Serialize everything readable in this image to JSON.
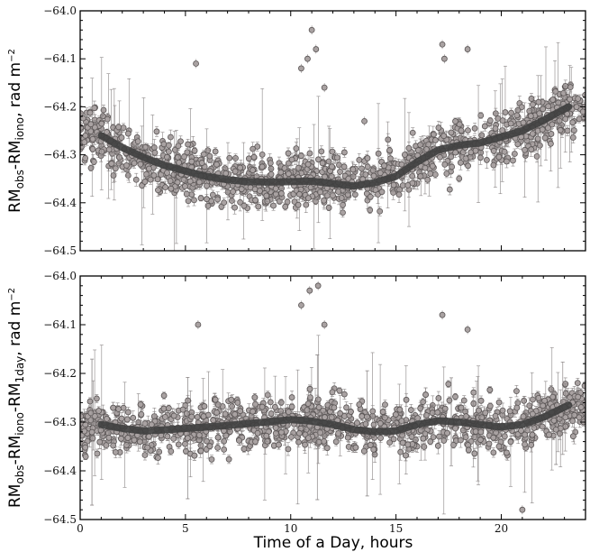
{
  "chart_data": [
    {
      "type": "scatter",
      "title": "",
      "ylabel": {
        "base": "RM",
        "s1": "obs",
        "m1": "-RM",
        "s2": "iono",
        "tail": ", rad m",
        "sup": "−2"
      },
      "xlim": [
        0,
        24
      ],
      "ylim": [
        -64.5,
        -64.0
      ],
      "y_inverted": true,
      "xticks": [
        0,
        5,
        10,
        15,
        20
      ],
      "xtick_labels": [
        "",
        "",
        "",
        "",
        ""
      ],
      "yticks": [
        -64.0,
        -64.1,
        -64.2,
        -64.3,
        -64.4,
        -64.5
      ],
      "ytick_labels": [
        "−64.0",
        "−64.1",
        "−64.2",
        "−64.3",
        "−64.4",
        "−64.5"
      ],
      "trend": {
        "x": [
          1,
          2,
          3,
          4,
          5,
          6,
          7,
          8,
          9,
          10,
          11,
          12,
          13,
          14,
          15,
          16,
          17,
          18,
          19,
          20,
          21,
          22,
          23.2
        ],
        "y": [
          -64.26,
          -64.285,
          -64.305,
          -64.322,
          -64.334,
          -64.345,
          -64.352,
          -64.356,
          -64.357,
          -64.356,
          -64.355,
          -64.36,
          -64.365,
          -64.358,
          -64.345,
          -64.315,
          -64.29,
          -64.28,
          -64.275,
          -64.263,
          -64.25,
          -64.228,
          -64.2
        ]
      },
      "scatter_spread": 0.055,
      "outliers": [
        {
          "x": 10.5,
          "y": -64.12
        },
        {
          "x": 10.8,
          "y": -64.1
        },
        {
          "x": 11.2,
          "y": -64.08
        },
        {
          "x": 11.0,
          "y": -64.04
        },
        {
          "x": 11.6,
          "y": -64.16
        },
        {
          "x": 5.5,
          "y": -64.11
        },
        {
          "x": 17.2,
          "y": -64.07
        },
        {
          "x": 17.3,
          "y": -64.1
        },
        {
          "x": 18.4,
          "y": -64.08
        },
        {
          "x": 13.5,
          "y": -64.23
        }
      ]
    },
    {
      "type": "scatter",
      "title": "",
      "ylabel": {
        "base": "RM",
        "s1": "obs",
        "m1": "-RM",
        "s2": "iono",
        "m2": "-RM",
        "s3": "1day",
        "tail": ", rad m",
        "sup": "−2"
      },
      "xlabel": "Time of a Day, hours",
      "xlim": [
        0,
        24
      ],
      "ylim": [
        -64.5,
        -64.0
      ],
      "y_inverted": true,
      "xticks": [
        0,
        5,
        10,
        15,
        20
      ],
      "xtick_labels": [
        "0",
        "5",
        "10",
        "15",
        "20"
      ],
      "yticks": [
        -64.0,
        -64.1,
        -64.2,
        -64.3,
        -64.4,
        -64.5
      ],
      "ytick_labels": [
        "−64.0",
        "−64.1",
        "−64.2",
        "−64.3",
        "−64.4",
        "−64.5"
      ],
      "trend": {
        "x": [
          1,
          2,
          3,
          4,
          5,
          6,
          7,
          8,
          9,
          10,
          11,
          12,
          13,
          14,
          15,
          16,
          17,
          18,
          19,
          20,
          21,
          22,
          23.2
        ],
        "y": [
          -64.305,
          -64.313,
          -64.318,
          -64.316,
          -64.313,
          -64.31,
          -64.307,
          -64.303,
          -64.299,
          -64.295,
          -64.298,
          -64.305,
          -64.315,
          -64.32,
          -64.318,
          -64.305,
          -64.297,
          -64.3,
          -64.305,
          -64.31,
          -64.305,
          -64.29,
          -64.265
        ]
      },
      "scatter_spread": 0.055,
      "outliers": [
        {
          "x": 10.5,
          "y": -64.06
        },
        {
          "x": 10.9,
          "y": -64.03
        },
        {
          "x": 11.3,
          "y": -64.02
        },
        {
          "x": 11.6,
          "y": -64.1
        },
        {
          "x": 5.6,
          "y": -64.1
        },
        {
          "x": 17.2,
          "y": -64.08
        },
        {
          "x": 18.4,
          "y": -64.11
        },
        {
          "x": 21.0,
          "y": -64.48
        }
      ]
    }
  ]
}
